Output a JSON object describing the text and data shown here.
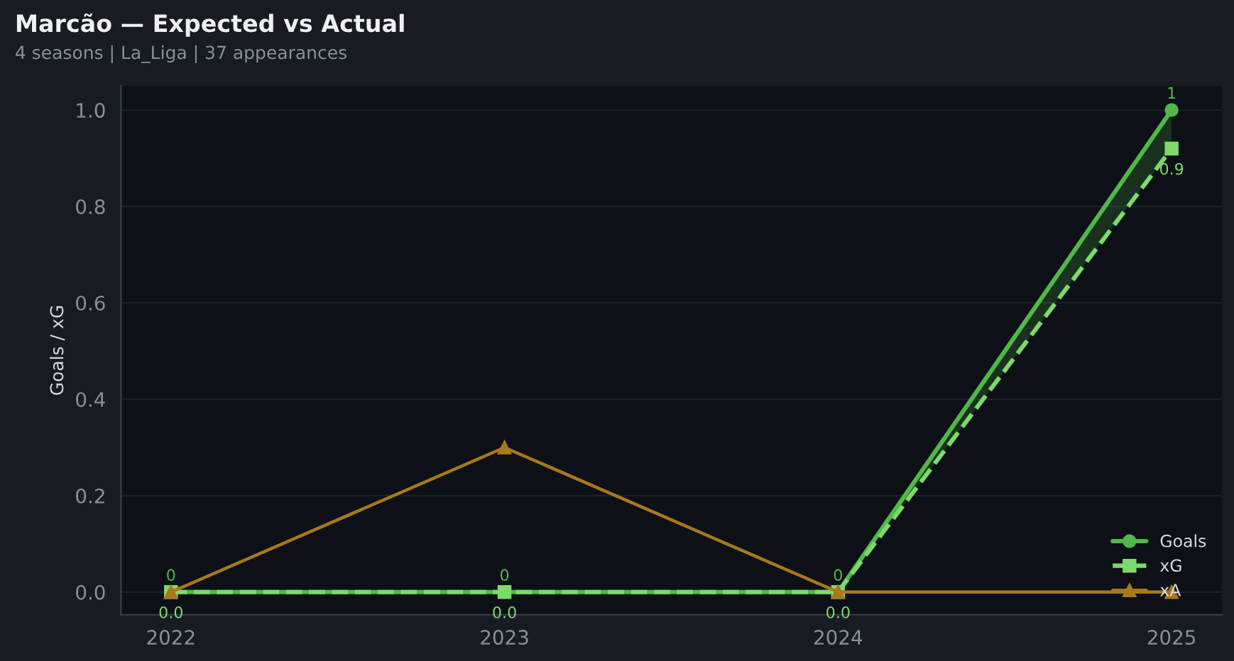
{
  "chart_data": {
    "type": "line",
    "title": "Marcão — Expected vs Actual",
    "subtitle": "4 seasons | La_Liga | 37 appearances",
    "ylabel": "Goals / xG",
    "x": [
      2022,
      2023,
      2024,
      2025
    ],
    "xlim": [
      2021.85,
      2025.15
    ],
    "xticks": [
      2022,
      2023,
      2024,
      2025
    ],
    "ylim": [
      -0.047,
      1.05
    ],
    "yticks": [
      {
        "value": 0,
        "label": "0.0"
      },
      0.2,
      0.4,
      0.6,
      0.8,
      {
        "value": 1,
        "label": "1.0"
      }
    ],
    "grid": "y",
    "legend": "bottom right",
    "series": [
      {
        "name": "Goals",
        "color": "#4fb848",
        "values": [
          0,
          0,
          0,
          1
        ],
        "marker": "circle",
        "line_style": "solid",
        "value_labels": [
          "0",
          "0",
          "0",
          "1"
        ],
        "lower": [
          null,
          null,
          0,
          0.92
        ],
        "upper": [
          null,
          null,
          0,
          1
        ]
      },
      {
        "name": "xG",
        "color": "#7ed96b",
        "values": [
          0,
          0,
          0,
          0.92
        ],
        "marker": "square",
        "line_style": "dashed",
        "value_labels": [
          "0.0",
          "0.0",
          "0.0",
          "0.9"
        ]
      },
      {
        "name": "xA",
        "color": "#a8791a",
        "values": [
          0,
          0.3,
          0,
          0
        ],
        "marker": "triangle",
        "line_style": "solid"
      }
    ]
  }
}
